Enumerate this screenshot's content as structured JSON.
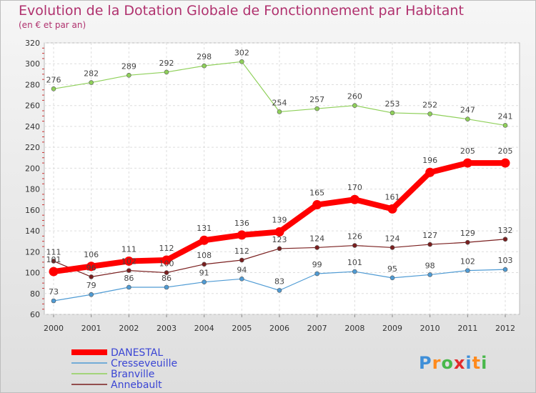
{
  "chart_data": {
    "type": "line",
    "title": "Evolution de la Dotation Globale de Fonctionnement par Habitant",
    "subtitle": "(en € et par an)",
    "x": [
      "2000",
      "2001",
      "2002",
      "2003",
      "2004",
      "2005",
      "2006",
      "2007",
      "2008",
      "2009",
      "2010",
      "2011",
      "2012"
    ],
    "y_ticks": [
      "60",
      "80",
      "100",
      "120",
      "140",
      "160",
      "180",
      "200",
      "220",
      "240",
      "260",
      "280",
      "300",
      "320"
    ],
    "ylim": [
      60,
      320
    ],
    "grid": true,
    "legend_position": "bottom-left",
    "series": [
      {
        "name": "DANESTAL",
        "color": "#ff0000",
        "labels": [
          "101",
          "106",
          "111",
          "112",
          "131",
          "136",
          "139",
          "165",
          "170",
          "161",
          "196",
          "205",
          "205"
        ],
        "values": [
          101,
          106,
          111,
          112,
          131,
          136,
          139,
          165,
          170,
          161,
          196,
          205,
          205
        ]
      },
      {
        "name": "Cresseveuille",
        "color": "#4f9bd4",
        "labels": [
          "73",
          "79",
          "86",
          "86",
          "91",
          "94",
          "83",
          "99",
          "101",
          "95",
          "98",
          "102",
          "103"
        ],
        "values": [
          73,
          79,
          86,
          86,
          91,
          94,
          83,
          99,
          101,
          95,
          98,
          102,
          103
        ]
      },
      {
        "name": "Branville",
        "color": "#8fd05a",
        "labels": [
          "276",
          "282",
          "289",
          "292",
          "298",
          "302",
          "254",
          "257",
          "260",
          "253",
          "252",
          "247",
          "241"
        ],
        "values": [
          276,
          282,
          289,
          292,
          298,
          302,
          254,
          257,
          260,
          253,
          252,
          247,
          241
        ]
      },
      {
        "name": "Annebault",
        "color": "#7a1f1f",
        "labels": [
          "111",
          "96",
          "102",
          "100",
          "108",
          "112",
          "123",
          "124",
          "126",
          "124",
          "127",
          "129",
          "132"
        ],
        "values": [
          111,
          96,
          102,
          100,
          108,
          112,
          123,
          124,
          126,
          124,
          127,
          129,
          132
        ]
      }
    ]
  },
  "logo": {
    "text": "Proxiti",
    "letters": [
      "P",
      "r",
      "o",
      "x",
      "i",
      "t",
      "i"
    ]
  }
}
